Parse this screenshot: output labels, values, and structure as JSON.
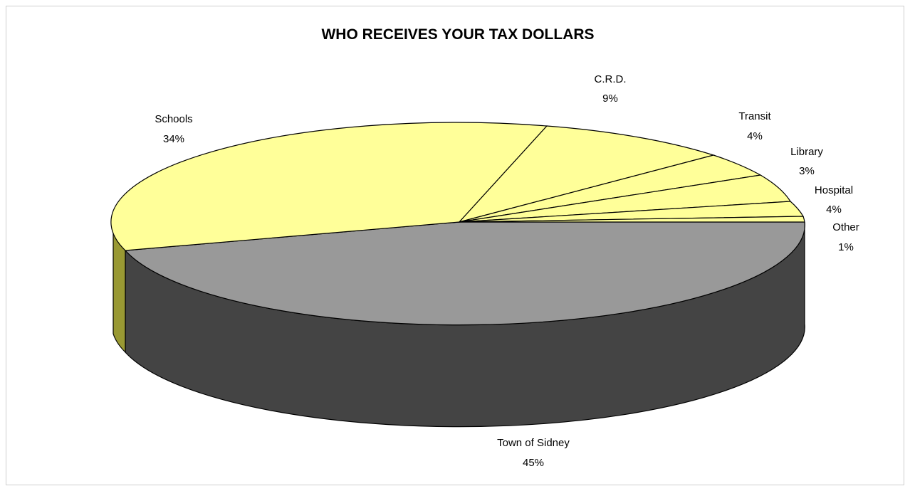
{
  "chart_data": {
    "type": "pie",
    "title": "WHO RECEIVES YOUR TAX DOLLARS",
    "three_d": true,
    "slices": [
      {
        "label": "Town of Sidney",
        "pct_text": "45%",
        "value": 45,
        "color": "#999999"
      },
      {
        "label": "Schools",
        "pct_text": "34%",
        "value": 34,
        "color": "#ffff99"
      },
      {
        "label": "C.R.D.",
        "pct_text": "9%",
        "value": 9,
        "color": "#ffff99"
      },
      {
        "label": "Transit",
        "pct_text": "4%",
        "value": 4,
        "color": "#ffff99"
      },
      {
        "label": "Library",
        "pct_text": "3%",
        "value": 3,
        "color": "#ffff99"
      },
      {
        "label": "Hospital",
        "pct_text": "4%",
        "value": 4,
        "color": "#ffff99"
      },
      {
        "label": "Other",
        "pct_text": "1%",
        "value": 1,
        "color": "#ffff99"
      }
    ],
    "colors": {
      "front_side": "#444444",
      "schools_side": "#999933",
      "edge": "#000000"
    }
  }
}
